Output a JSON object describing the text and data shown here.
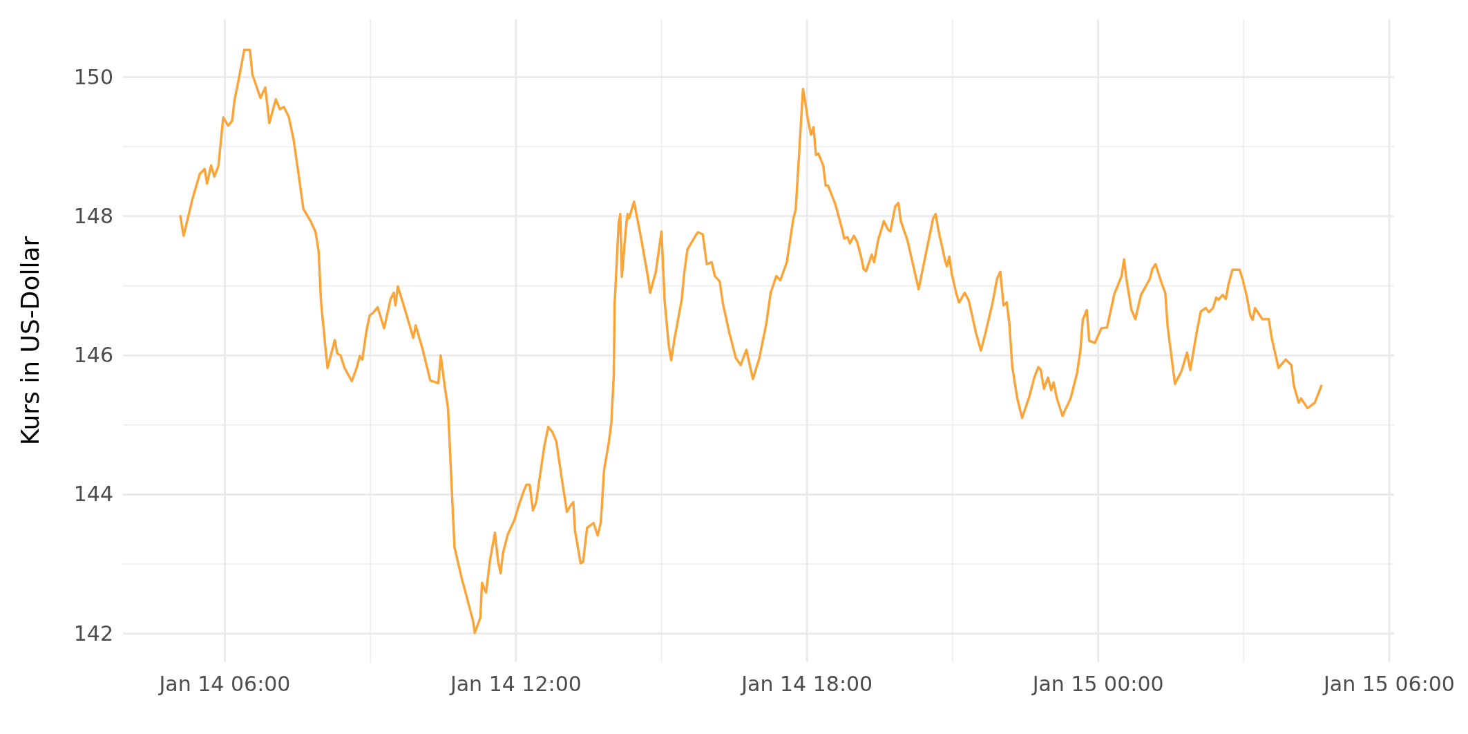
{
  "chart_data": {
    "type": "line",
    "ylabel": "Kurs in US-Dollar",
    "xlim": [
      "--01-14T03:54",
      "--01-15T06:06"
    ],
    "ylim": [
      141.59,
      150.83
    ],
    "xticks": [
      {
        "value": "--01-14T06:00",
        "label": "Jan 14 06:00"
      },
      {
        "value": "--01-14T12:00",
        "label": "Jan 14 12:00"
      },
      {
        "value": "--01-14T18:00",
        "label": "Jan 14 18:00"
      },
      {
        "value": "--01-15T00:00",
        "label": "Jan 15 00:00"
      },
      {
        "value": "--01-15T06:00",
        "label": "Jan 15 06:00"
      }
    ],
    "yticks": [
      142,
      144,
      146,
      148,
      150
    ],
    "grid": true,
    "series": [
      {
        "color": "#f9a53a",
        "x": [
          "--01-14T05:05",
          "--01-14T05:09",
          "--01-14T05:20",
          "--01-14T05:29",
          "--01-14T05:35",
          "--01-14T05:38",
          "--01-14T05:43",
          "--01-14T05:47",
          "--01-14T05:52",
          "--01-14T05:58",
          "--01-14T06:04",
          "--01-14T06:09",
          "--01-14T06:12",
          "--01-14T06:17",
          "--01-14T06:24",
          "--01-14T06:31",
          "--01-14T06:34",
          "--01-14T06:44",
          "--01-14T06:50",
          "--01-14T06:55",
          "--01-14T07:03",
          "--01-14T07:08",
          "--01-14T07:13",
          "--01-14T07:19",
          "--01-14T07:25",
          "--01-14T07:31",
          "--01-14T07:37",
          "--01-14T07:46",
          "--01-14T07:52",
          "--01-14T07:56",
          "--01-14T07:59",
          "--01-14T08:05",
          "--01-14T08:07",
          "--01-14T08:16",
          "--01-14T08:19",
          "--01-14T08:23",
          "--01-14T08:28",
          "--01-14T08:37",
          "--01-14T08:43",
          "--01-14T08:47",
          "--01-14T08:50",
          "--01-14T08:55",
          "--01-14T08:59",
          "--01-14T09:04",
          "--01-14T09:09",
          "--01-14T09:17",
          "--01-14T09:25",
          "--01-14T09:29",
          "--01-14T09:31",
          "--01-14T09:34",
          "--01-14T09:44",
          "--01-14T09:53",
          "--01-14T09:56",
          "--01-14T10:05",
          "--01-14T10:14",
          "--01-14T10:16",
          "--01-14T10:24",
          "--01-14T10:27",
          "--01-14T10:32",
          "--01-14T10:36",
          "--01-14T10:44",
          "--01-14T10:53",
          "--01-14T10:57",
          "--01-14T11:07",
          "--01-14T11:09",
          "--01-14T11:16",
          "--01-14T11:18",
          "--01-14T11:23",
          "--01-14T11:28",
          "--01-14T11:34",
          "--01-14T11:38",
          "--01-14T11:41",
          "--01-14T11:44",
          "--01-14T11:50",
          "--01-14T11:58",
          "--01-14T12:04",
          "--01-14T12:10",
          "--01-14T12:13",
          "--01-14T12:17",
          "--01-14T12:21",
          "--01-14T12:25",
          "--01-14T12:29",
          "--01-14T12:35",
          "--01-14T12:40",
          "--01-14T12:45",
          "--01-14T12:50",
          "--01-14T12:56",
          "--01-14T13:03",
          "--01-14T13:07",
          "--01-14T13:11",
          "--01-14T13:13",
          "--01-14T13:20",
          "--01-14T13:23",
          "--01-14T13:28",
          "--01-14T13:36",
          "--01-14T13:41",
          "--01-14T13:45",
          "--01-14T13:49",
          "--01-14T13:55",
          "--01-14T13:58",
          "--01-14T14:01",
          "--01-14T14:02",
          "--01-14T14:07",
          "--01-14T14:09",
          "--01-14T14:11",
          "--01-14T14:16",
          "--01-14T14:18",
          "--01-14T14:20",
          "--01-14T14:26",
          "--01-14T14:30",
          "--01-14T14:35",
          "--01-14T14:43",
          "--01-14T14:46",
          "--01-14T14:53",
          "--01-14T15:00",
          "--01-14T15:04",
          "--01-14T15:09",
          "--01-14T15:12",
          "--01-14T15:16",
          "--01-14T15:25",
          "--01-14T15:28",
          "--01-14T15:32",
          "--01-14T15:42",
          "--01-14T15:45",
          "--01-14T15:51",
          "--01-14T15:56",
          "--01-14T16:02",
          "--01-14T16:06",
          "--01-14T16:12",
          "--01-14T16:16",
          "--01-14T16:24",
          "--01-14T16:32",
          "--01-14T16:38",
          "--01-14T16:45",
          "--01-14T16:53",
          "--01-14T17:01",
          "--01-14T17:10",
          "--01-14T17:15",
          "--01-14T17:22",
          "--01-14T17:27",
          "--01-14T17:35",
          "--01-14T17:43",
          "--01-14T17:46",
          "--01-14T17:50",
          "--01-14T17:55",
          "--01-14T17:58",
          "--01-14T18:01",
          "--01-14T18:05",
          "--01-14T18:08",
          "--01-14T18:11",
          "--01-14T18:14",
          "--01-14T18:20",
          "--01-14T18:23",
          "--01-14T18:26",
          "--01-14T18:35",
          "--01-14T18:43",
          "--01-14T18:46",
          "--01-14T18:50",
          "--01-14T18:53",
          "--01-14T18:58",
          "--01-14T19:02",
          "--01-14T19:07",
          "--01-14T19:10",
          "--01-14T19:13",
          "--01-14T19:20",
          "--01-14T19:23",
          "--01-14T19:28",
          "--01-14T19:35",
          "--01-14T19:40",
          "--01-14T19:43",
          "--01-14T19:49",
          "--01-14T19:53",
          "--01-14T19:56",
          "--01-14T20:04",
          "--01-14T20:11",
          "--01-14T20:18",
          "--01-14T20:28",
          "--01-14T20:36",
          "--01-14T20:39",
          "--01-14T20:43",
          "--01-14T20:51",
          "--01-14T20:53",
          "--01-14T20:56",
          "--01-14T20:59",
          "--01-14T21:05",
          "--01-14T21:08",
          "--01-14T21:15",
          "--01-14T21:20",
          "--01-14T21:29",
          "--01-14T21:35",
          "--01-14T21:40",
          "--01-14T21:49",
          "--01-14T21:55",
          "--01-14T21:59",
          "--01-14T22:03",
          "--01-14T22:07",
          "--01-14T22:10",
          "--01-14T22:14",
          "--01-14T22:20",
          "--01-14T22:26",
          "--01-14T22:35",
          "--01-14T22:41",
          "--01-14T22:46",
          "--01-14T22:49",
          "--01-14T22:53",
          "--01-14T22:58",
          "--01-14T23:02",
          "--01-14T23:05",
          "--01-14T23:09",
          "--01-14T23:16",
          "--01-14T23:19",
          "--01-14T23:26",
          "--01-14T23:34",
          "--01-14T23:38",
          "--01-14T23:41",
          "--01-14T23:46",
          "--01-14T23:49",
          "--01-14T23:56",
          "--01-15T00:04",
          "--01-15T00:11",
          "--01-15T00:20",
          "--01-15T00:29",
          "--01-15T00:32",
          "--01-15T00:35",
          "--01-15T00:41",
          "--01-15T00:46",
          "--01-15T00:53",
          "--01-15T01:04",
          "--01-15T01:07",
          "--01-15T01:11",
          "--01-15T01:19",
          "--01-15T01:23",
          "--01-15T01:26",
          "--01-15T01:35",
          "--01-15T01:43",
          "--01-15T01:50",
          "--01-15T01:54",
          "--01-15T02:02",
          "--01-15T02:07",
          "--01-15T02:13",
          "--01-15T02:17",
          "--01-15T02:22",
          "--01-15T02:26",
          "--01-15T02:29",
          "--01-15T02:34",
          "--01-15T02:38",
          "--01-15T02:41",
          "--01-15T02:46",
          "--01-15T02:55",
          "--01-15T02:59",
          "--01-15T03:04",
          "--01-15T03:08",
          "--01-15T03:11",
          "--01-15T03:14",
          "--01-15T03:23",
          "--01-15T03:31",
          "--01-15T03:35",
          "--01-15T03:43",
          "--01-15T03:52",
          "--01-15T03:59",
          "--01-15T04:02",
          "--01-15T04:08",
          "--01-15T04:11",
          "--01-15T04:19",
          "--01-15T04:28",
          "--01-15T04:36"
        ],
        "values": [
          148.0,
          147.72,
          148.25,
          148.61,
          148.68,
          148.47,
          148.73,
          148.57,
          148.72,
          149.42,
          149.3,
          149.37,
          149.67,
          149.96,
          150.39,
          150.39,
          150.04,
          149.7,
          149.85,
          149.34,
          149.68,
          149.54,
          149.57,
          149.43,
          149.1,
          148.62,
          148.11,
          147.93,
          147.78,
          147.5,
          146.76,
          146.04,
          145.82,
          146.22,
          146.03,
          146.0,
          145.82,
          145.63,
          145.82,
          145.99,
          145.94,
          146.34,
          146.57,
          146.62,
          146.69,
          146.39,
          146.81,
          146.9,
          146.72,
          146.99,
          146.61,
          146.25,
          146.43,
          146.07,
          145.64,
          145.63,
          145.6,
          146.0,
          145.55,
          145.24,
          143.24,
          142.79,
          142.62,
          142.18,
          142.01,
          142.23,
          142.73,
          142.59,
          143.06,
          143.45,
          143.03,
          142.87,
          143.16,
          143.43,
          143.63,
          143.86,
          144.06,
          144.14,
          144.14,
          143.77,
          143.89,
          144.21,
          144.69,
          144.97,
          144.9,
          144.76,
          144.28,
          143.75,
          143.83,
          143.89,
          143.48,
          143.01,
          143.03,
          143.52,
          143.59,
          143.41,
          143.6,
          144.35,
          144.76,
          145.03,
          145.72,
          146.73,
          147.89,
          148.03,
          147.13,
          147.83,
          148.03,
          147.97,
          148.21,
          147.97,
          147.67,
          147.14,
          146.9,
          147.2,
          147.78,
          146.76,
          146.14,
          145.93,
          146.23,
          146.8,
          147.17,
          147.52,
          147.72,
          147.77,
          147.74,
          147.31,
          147.34,
          147.14,
          147.06,
          146.74,
          146.32,
          145.96,
          145.86,
          146.08,
          145.66,
          145.96,
          146.48,
          146.9,
          147.14,
          147.08,
          147.34,
          147.96,
          148.1,
          148.86,
          149.83,
          149.63,
          149.39,
          149.17,
          149.28,
          148.88,
          148.9,
          148.73,
          148.44,
          148.44,
          148.17,
          147.83,
          147.68,
          147.7,
          147.61,
          147.72,
          147.63,
          147.41,
          147.24,
          147.21,
          147.45,
          147.34,
          147.66,
          147.93,
          147.81,
          147.78,
          148.14,
          148.19,
          147.93,
          147.66,
          147.31,
          146.95,
          147.52,
          147.97,
          148.03,
          147.77,
          147.35,
          147.28,
          147.42,
          147.17,
          146.87,
          146.76,
          146.9,
          146.79,
          146.32,
          146.07,
          146.29,
          146.73,
          147.1,
          147.2,
          146.72,
          146.76,
          146.48,
          145.82,
          145.38,
          145.1,
          145.41,
          145.68,
          145.83,
          145.79,
          145.52,
          145.68,
          145.5,
          145.61,
          145.38,
          145.13,
          145.21,
          145.38,
          145.75,
          146.07,
          146.51,
          146.65,
          146.21,
          146.18,
          146.39,
          146.4,
          146.88,
          147.14,
          147.38,
          147.1,
          146.66,
          146.52,
          146.87,
          147.1,
          147.24,
          147.31,
          147.02,
          146.9,
          146.41,
          145.59,
          145.77,
          146.04,
          145.79,
          146.34,
          146.63,
          146.68,
          146.62,
          146.68,
          146.83,
          146.8,
          146.87,
          146.81,
          147.01,
          147.23,
          147.23,
          147.08,
          146.84,
          146.58,
          146.51,
          146.68,
          146.52,
          146.52,
          146.23,
          145.82,
          145.94,
          145.86,
          145.57,
          145.32,
          145.38,
          145.24,
          145.32,
          145.56
        ]
      }
    ]
  }
}
